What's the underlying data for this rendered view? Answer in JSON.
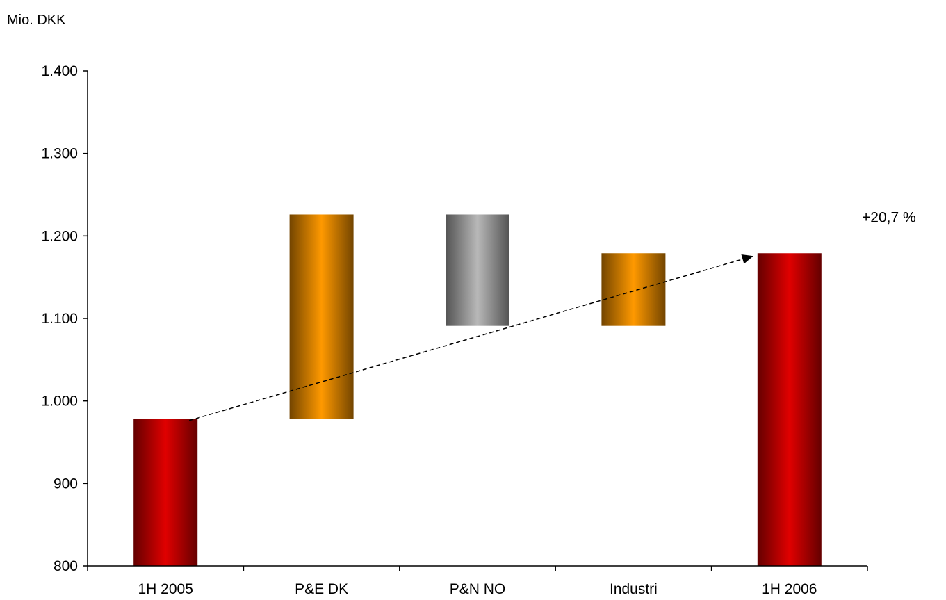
{
  "chart_data": {
    "type": "bar",
    "subtype": "waterfall",
    "unit_label": "Mio. DKK",
    "categories": [
      "1H 2005",
      "P&E DK",
      "P&N NO",
      "Industri",
      "1H 2006"
    ],
    "bars": [
      {
        "category": "1H 2005",
        "from": 800,
        "to": 978,
        "kind": "total",
        "color": "#e00000"
      },
      {
        "category": "P&E DK",
        "from": 978,
        "to": 1226,
        "kind": "increase",
        "color": "#ff9900"
      },
      {
        "category": "P&N NO",
        "from": 1226,
        "to": 1091,
        "kind": "decrease",
        "color": "#b8b8b8"
      },
      {
        "category": "Industri",
        "from": 1091,
        "to": 1179,
        "kind": "increase",
        "color": "#ff9900"
      },
      {
        "category": "1H 2006",
        "from": 800,
        "to": 1179,
        "kind": "total",
        "color": "#e00000"
      }
    ],
    "y_ticks": [
      "800",
      "900",
      "1.000",
      "1.100",
      "1.200",
      "1.300",
      "1.400"
    ],
    "ylim": [
      800,
      1400
    ],
    "annotation": {
      "text": "+20,7 %",
      "arrow_from": {
        "category": "1H 2005",
        "value": 978
      },
      "arrow_to": {
        "category": "1H 2006",
        "value": 1179
      }
    },
    "grid": false,
    "legend": "none"
  }
}
